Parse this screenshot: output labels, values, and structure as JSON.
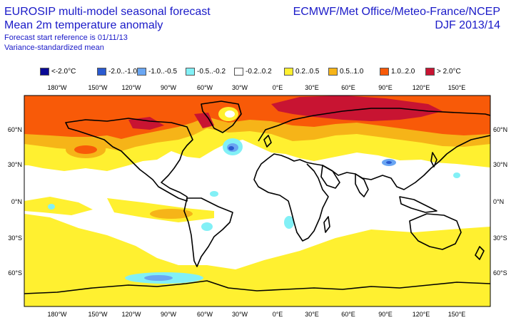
{
  "header": {
    "title_line1": "EUROSIP multi-model seasonal forecast",
    "title_line2": "Mean 2m temperature anomaly",
    "sub_line1": "Forecast start reference is 01/11/13",
    "sub_line2": "Variance-standardized mean",
    "centres": "ECMWF/Met Office/Meteo-France/NCEP",
    "season": "DJF 2013/14"
  },
  "legend": [
    {
      "label": "<-2.0°C",
      "color": "#0a0a96"
    },
    {
      "label": "-2.0..-1.0",
      "color": "#2a5ad0"
    },
    {
      "label": "-1.0..-0.5",
      "color": "#6aa6f2"
    },
    {
      "label": "-0.5..-0.2",
      "color": "#82f0f6"
    },
    {
      "label": "-0.2..0.2",
      "color": "#ffffff"
    },
    {
      "label": "0.2..0.5",
      "color": "#fff030"
    },
    {
      "label": "0.5..1.0",
      "color": "#f6b418"
    },
    {
      "label": "1.0..2.0",
      "color": "#f85a08"
    },
    {
      "label": "> 2.0°C",
      "color": "#c81432"
    }
  ],
  "map": {
    "lon_labels": [
      "180°W",
      "150°W",
      "120°W",
      "90°W",
      "60°W",
      "30°W",
      "0°E",
      "30°E",
      "60°E",
      "90°E",
      "120°E",
      "150°E"
    ],
    "lat_labels": [
      "60°N",
      "30°N",
      "0°N",
      "30°S",
      "60°S"
    ]
  }
}
